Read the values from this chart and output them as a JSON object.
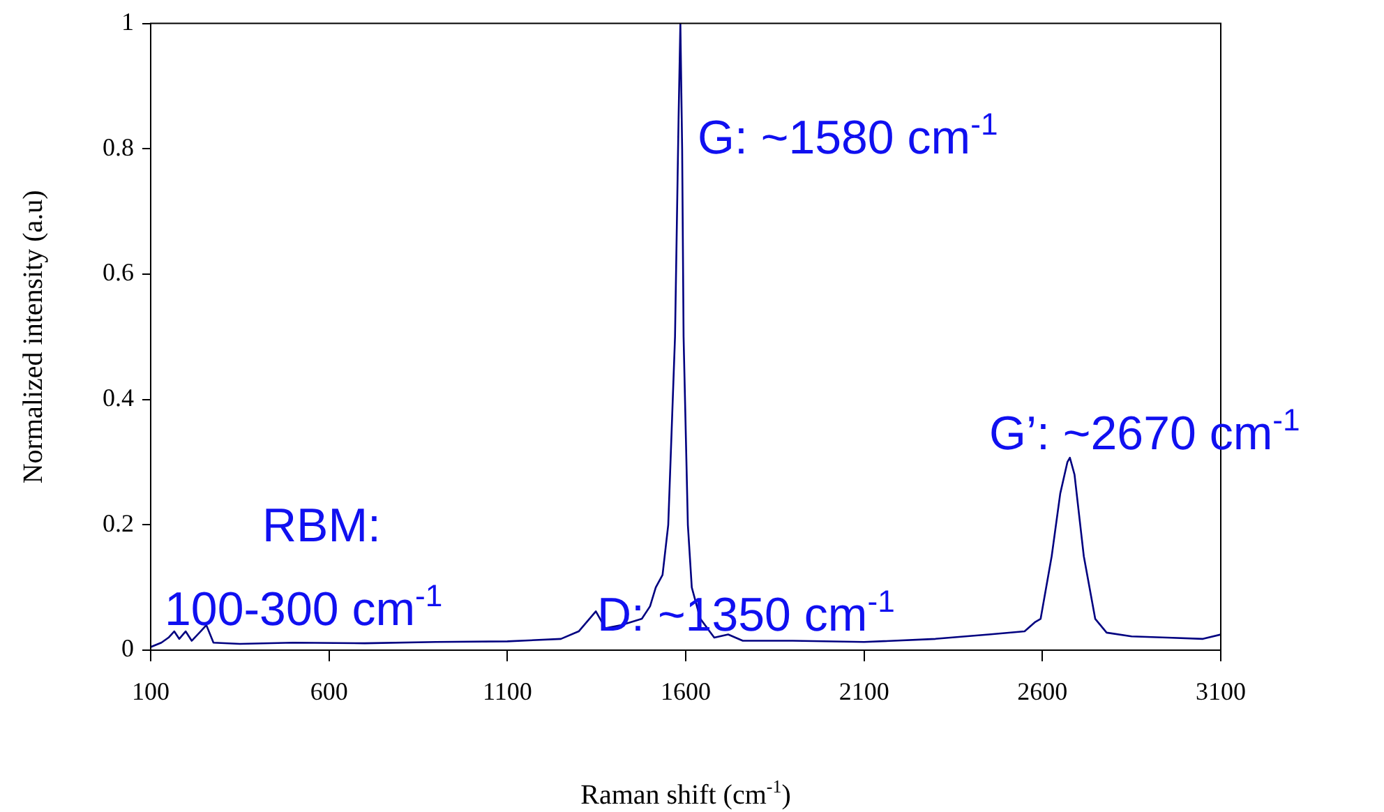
{
  "chart_data": {
    "type": "line",
    "xlabel": "Raman shift (cm$^{-1}$)",
    "ylabel": "Normalized intensity (a.u)",
    "x": [
      100,
      130,
      150,
      166,
      180,
      198,
      215,
      240,
      256,
      276,
      350,
      500,
      700,
      900,
      1100,
      1250,
      1300,
      1348,
      1375,
      1420,
      1477,
      1500,
      1516,
      1535,
      1551,
      1570,
      1580,
      1585,
      1590,
      1594,
      1606,
      1617,
      1641,
      1680,
      1719,
      1760,
      1900,
      2100,
      2300,
      2450,
      2550,
      2580,
      2595,
      2626,
      2650,
      2670,
      2677,
      2690,
      2716,
      2748,
      2780,
      2850,
      2950,
      3050,
      3100
    ],
    "series": [
      {
        "color": "#000080",
        "values": [
          0.005,
          0.012,
          0.02,
          0.03,
          0.018,
          0.03,
          0.015,
          0.03,
          0.04,
          0.012,
          0.01,
          0.012,
          0.011,
          0.013,
          0.014,
          0.018,
          0.03,
          0.062,
          0.035,
          0.04,
          0.05,
          0.07,
          0.1,
          0.12,
          0.2,
          0.5,
          0.85,
          1.0,
          0.8,
          0.5,
          0.2,
          0.1,
          0.05,
          0.02,
          0.025,
          0.015,
          0.015,
          0.013,
          0.018,
          0.025,
          0.03,
          0.045,
          0.05,
          0.15,
          0.25,
          0.3,
          0.307,
          0.28,
          0.15,
          0.05,
          0.028,
          0.022,
          0.02,
          0.018,
          0.025
        ]
      }
    ],
    "xlim": [
      100,
      3100
    ],
    "xticks": [
      100,
      600,
      1100,
      1600,
      2100,
      2600,
      3100
    ],
    "ylim": [
      0,
      1
    ],
    "yticks": [
      0,
      0.2,
      0.4,
      0.6,
      0.8,
      1
    ],
    "grid": false,
    "legend": false,
    "marker": "none",
    "line_style": "solid",
    "annotations": [
      "G: ~1580 cm$^{-1}$",
      "G’: ~2670 cm$^{-1}$",
      "D: ~1350 cm$^{-1}$",
      "RBM:",
      "100-300 cm$^{-1}$"
    ]
  }
}
